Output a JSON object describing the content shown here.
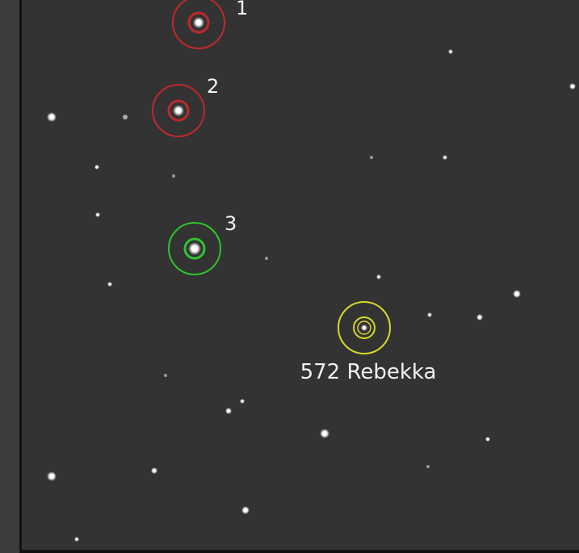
{
  "labels": {
    "star1": "1",
    "star2": "2",
    "star3": "3",
    "asteroid": "572 Rebekka"
  }
}
